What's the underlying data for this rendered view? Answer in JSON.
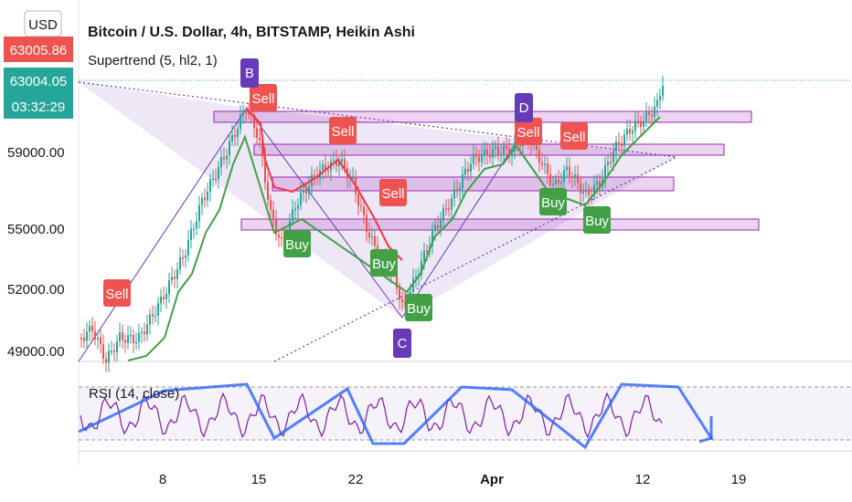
{
  "chart_data": {
    "type": "candlestick",
    "title": "Bitcoin / U.S. Dollar, 4h, BITSTAMP, Heikin Ashi",
    "currency": "USD",
    "indicator": "Supertrend (5, hl2, 1)",
    "rsi_label": "RSI (14, close)",
    "price_badges": [
      "63005.86",
      "63004.05",
      "03:32:29"
    ],
    "y_ticks": [
      "59000.00",
      "55000.00",
      "52000.00",
      "49000.00"
    ],
    "x_ticks": [
      "8",
      "15",
      "22",
      "Apr",
      "12",
      "19"
    ],
    "pattern_points": [
      "B",
      "C",
      "D"
    ],
    "signals": [
      {
        "type": "sell",
        "text": "Sell"
      },
      {
        "type": "sell",
        "text": "Sell"
      },
      {
        "type": "sell",
        "text": "Sell"
      },
      {
        "type": "sell",
        "text": "Sell"
      },
      {
        "type": "sell",
        "text": "Sell"
      },
      {
        "type": "sell",
        "text": "Sell"
      },
      {
        "type": "buy",
        "text": "Buy"
      },
      {
        "type": "buy",
        "text": "Buy"
      },
      {
        "type": "buy",
        "text": "Buy"
      },
      {
        "type": "buy",
        "text": "Buy"
      },
      {
        "type": "buy",
        "text": "Buy"
      }
    ],
    "colors": {
      "bull": "#26a69a",
      "bear": "#ef5350",
      "pattern": "#673ab7",
      "zone": "#9c27b0",
      "rsi": "#7b1fa2",
      "rsi_trend": "#2962ff",
      "supertrend_up": "#43a047",
      "supertrend_down": "#f23645"
    }
  }
}
